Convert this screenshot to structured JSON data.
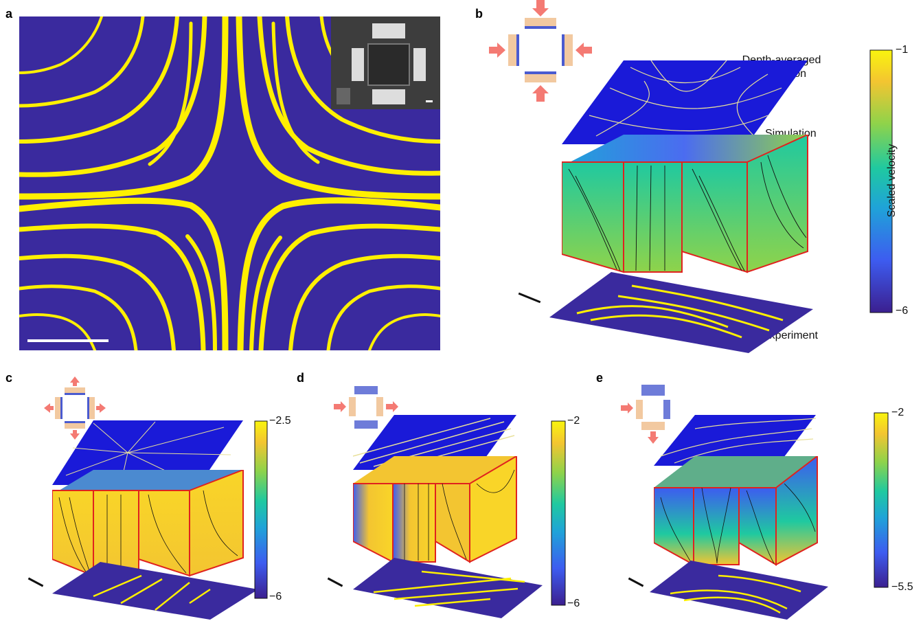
{
  "panels": {
    "a": {
      "letter": "a"
    },
    "b": {
      "letter": "b",
      "labels": {
        "top": "Depth-averaged simulation",
        "middle": "Simulation",
        "bottom": "Experiment"
      },
      "colorbar": {
        "title": "Scaled velocity",
        "max": "−1",
        "min": "−6"
      }
    },
    "c": {
      "letter": "c",
      "colorbar": {
        "max": "−2.5",
        "min": "−6"
      }
    },
    "d": {
      "letter": "d",
      "colorbar": {
        "max": "−2",
        "min": "−6"
      }
    },
    "e": {
      "letter": "e",
      "colorbar": {
        "max": "−2",
        "min": "−5.5"
      }
    }
  },
  "colors": {
    "background_dark": "#3a2a9e",
    "streak_yellow": "#fff000",
    "sim_blue": "#1a1ad8",
    "box_edge": "#e0221e",
    "arrow": "#f47a73",
    "colormap": [
      "#3b1f8f",
      "#3d5cf0",
      "#1fa3d8",
      "#1fc9a0",
      "#8fd34a",
      "#f3c531",
      "#f9f40e"
    ]
  },
  "icons": [
    "double-headed-arrow-icon",
    "electrode-array-icon"
  ]
}
